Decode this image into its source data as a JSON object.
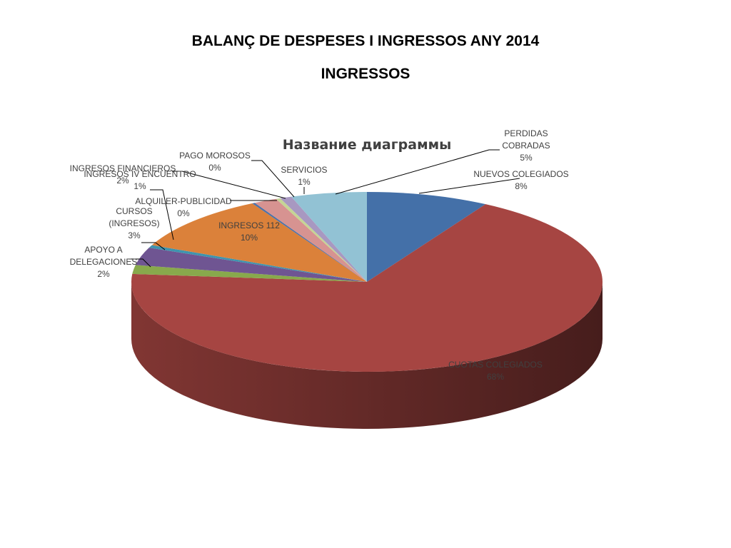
{
  "slide": {
    "title": "BALANÇ DE DESPESES I INGRESSOS ANY 2014",
    "subtitle": "INGRESSOS"
  },
  "chart_data": {
    "type": "pie",
    "title": "Название диаграммы",
    "style": "3d-pie",
    "slices": [
      {
        "label": "NUEVOS COLEGIADOS",
        "pct_label": "8%",
        "value": 8.4,
        "color": "#4470A8"
      },
      {
        "label": "CUOTAS COLEGIADOS",
        "pct_label": "68%",
        "value": 68.0,
        "color": "#A64542"
      },
      {
        "label": "APOYO A DELEGACIONES",
        "pct_label": "2%",
        "value": 1.6,
        "color": "#88A94C"
      },
      {
        "label": "CURSOS (INGRESOS)",
        "pct_label": "3%",
        "value": 3.2,
        "color": "#6F5592"
      },
      {
        "label": "INGRESOS IV ENCUENTRO",
        "pct_label": "1%",
        "value": 0.5,
        "color": "#3F94AE"
      },
      {
        "label": "INGRESOS 112",
        "pct_label": "10%",
        "value": 10.2,
        "color": "#DB813A"
      },
      {
        "label": "ALQUILER-PUBLICIDAD",
        "pct_label": "0%",
        "value": 0.2,
        "color": "#4E72A8"
      },
      {
        "label": "INGRESOS FINANCIEROS",
        "pct_label": "2%",
        "value": 1.6,
        "color": "#D79391"
      },
      {
        "label": "PAGO MOROSOS",
        "pct_label": "0%",
        "value": 0.3,
        "color": "#C5D595"
      },
      {
        "label": "SERVICIOS",
        "pct_label": "1%",
        "value": 0.8,
        "color": "#A898C1"
      },
      {
        "label": "PERDIDAS COBRADAS",
        "pct_label": "5%",
        "value": 5.2,
        "color": "#92C2D4"
      }
    ]
  }
}
